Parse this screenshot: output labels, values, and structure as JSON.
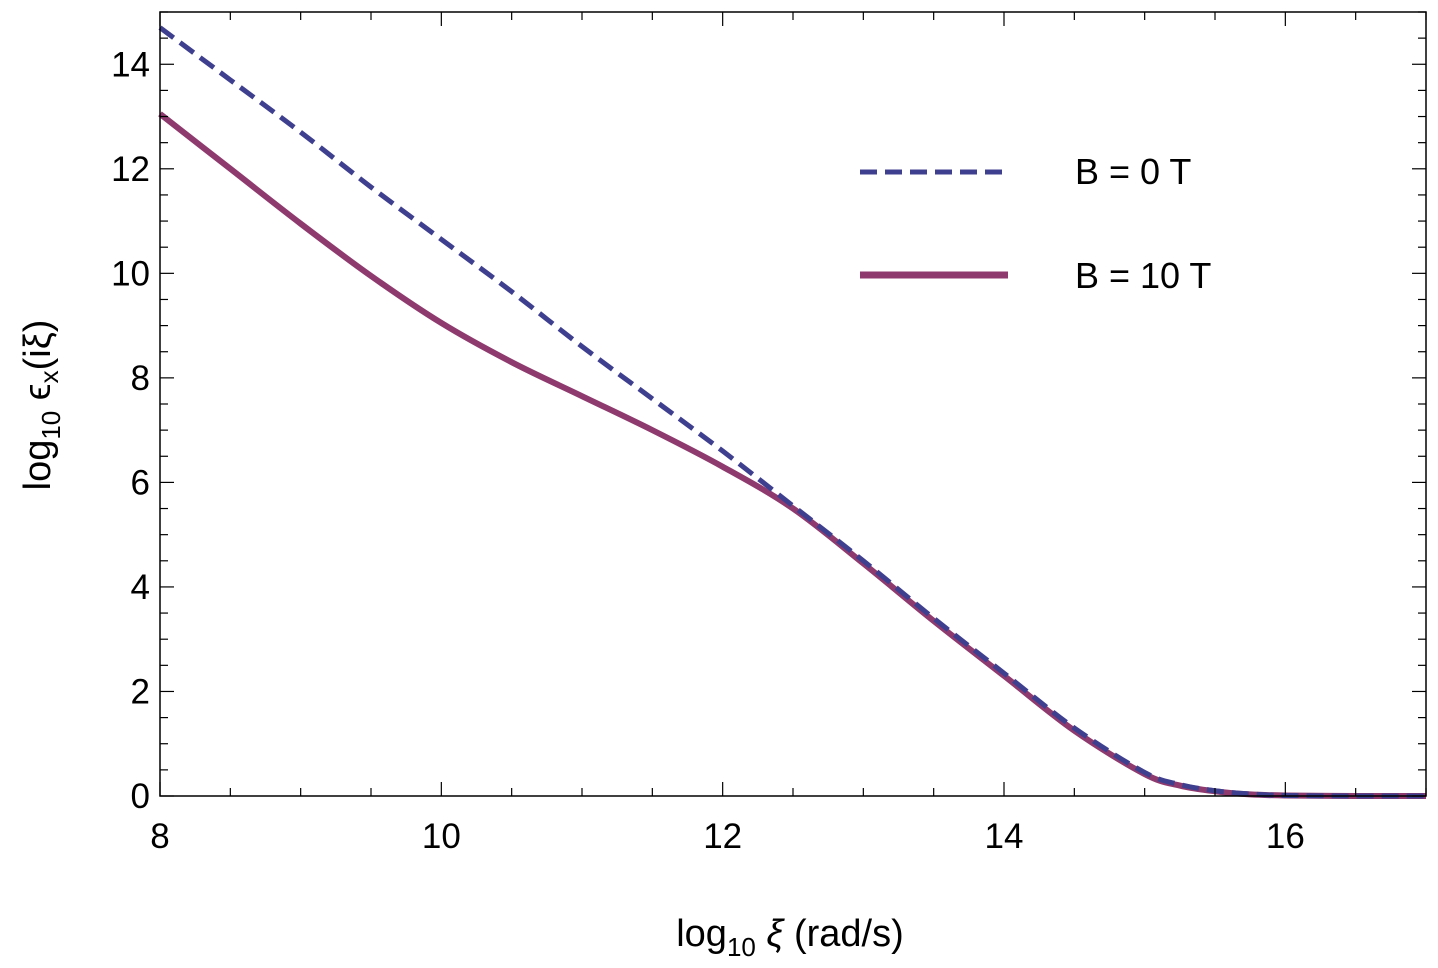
{
  "chart_data": {
    "type": "line",
    "xlabel": {
      "prefix": "log",
      "subscript": "10",
      "symbol": "ξ",
      "unit": "(rad/s)"
    },
    "ylabel": {
      "prefix": "log",
      "subscript": "10",
      "symbol": "ϵ",
      "symbol_subscript": "x",
      "argument": "(iξ)"
    },
    "xlim": [
      8,
      17
    ],
    "ylim": [
      0,
      15
    ],
    "xticks": [
      8,
      10,
      12,
      14,
      16
    ],
    "yticks": [
      0,
      2,
      4,
      6,
      8,
      10,
      12,
      14
    ],
    "xtick_labels": [
      "8",
      "10",
      "12",
      "14",
      "16"
    ],
    "ytick_labels": [
      "0",
      "2",
      "4",
      "6",
      "8",
      "10",
      "12",
      "14"
    ],
    "grid": false,
    "frame": true,
    "legend_position": "top-right",
    "series": [
      {
        "name": "B = 0 T",
        "color": "#3f3f8f",
        "style": "dashed",
        "x": [
          8,
          8.5,
          9,
          9.5,
          10,
          10.5,
          11,
          11.5,
          12,
          12.5,
          13,
          13.5,
          14,
          14.5,
          15,
          15.25,
          15.5,
          15.75,
          16,
          16.5,
          17
        ],
        "y": [
          14.7,
          13.7,
          12.7,
          11.65,
          10.65,
          9.65,
          8.6,
          7.6,
          6.6,
          5.55,
          4.5,
          3.4,
          2.35,
          1.3,
          0.45,
          0.22,
          0.1,
          0.04,
          0.01,
          0.0,
          0.0
        ]
      },
      {
        "name": "B = 10 T",
        "color": "#8e3a6e",
        "style": "solid",
        "x": [
          8,
          8.5,
          9,
          9.5,
          10,
          10.5,
          11,
          11.5,
          12,
          12.5,
          13,
          13.5,
          14,
          14.5,
          15,
          15.25,
          15.5,
          15.75,
          16,
          16.5,
          17
        ],
        "y": [
          13.05,
          12.0,
          10.95,
          9.95,
          9.05,
          8.3,
          7.65,
          7.0,
          6.3,
          5.5,
          4.45,
          3.35,
          2.3,
          1.25,
          0.42,
          0.2,
          0.09,
          0.03,
          0.01,
          0.0,
          0.0
        ]
      }
    ]
  }
}
